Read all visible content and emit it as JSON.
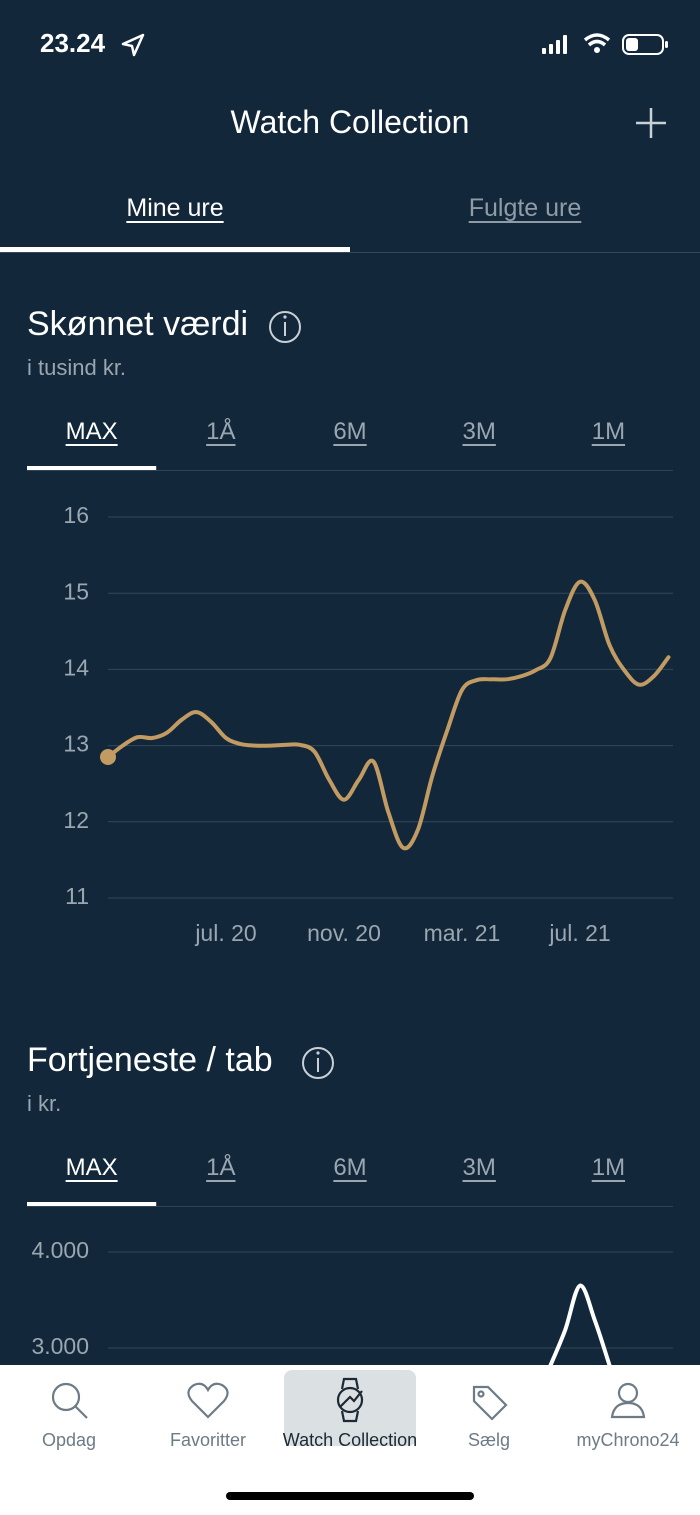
{
  "status_bar": {
    "time": "23.24"
  },
  "header": {
    "title": "Watch Collection",
    "tabs": [
      "Mine ure",
      "Fulgte ure"
    ],
    "active_tab": 0
  },
  "chart_data": [
    {
      "type": "line",
      "title": "Skønnet værdi",
      "subtitle": "i tusind kr.",
      "range_buttons": [
        "MAX",
        "1Å",
        "6M",
        "3M",
        "1M"
      ],
      "active_range": 0,
      "categories": [
        null,
        null,
        null,
        null,
        null,
        null,
        null,
        null,
        "jul. 20",
        null,
        null,
        null,
        null,
        null,
        null,
        null,
        "nov. 20",
        null,
        null,
        null,
        null,
        null,
        null,
        null,
        "mar. 21",
        null,
        null,
        null,
        null,
        null,
        null,
        null,
        "jul. 21",
        null,
        null,
        null,
        null,
        null,
        null
      ],
      "values": [
        12.85,
        13.0,
        13.11,
        13.1,
        13.17,
        13.34,
        13.44,
        13.31,
        13.1,
        13.02,
        13.0,
        13.0,
        13.01,
        13.01,
        12.92,
        12.55,
        12.29,
        12.55,
        12.79,
        12.13,
        11.66,
        11.89,
        12.61,
        13.2,
        13.73,
        13.86,
        13.87,
        13.87,
        13.91,
        13.99,
        14.15,
        14.78,
        15.15,
        14.91,
        14.32,
        13.99,
        13.8,
        13.91,
        14.16
      ],
      "color": "#c29b63",
      "ylim": [
        11,
        16
      ],
      "yticks": [
        11,
        12,
        13,
        14,
        15,
        16
      ],
      "grid": true
    },
    {
      "type": "line",
      "title": "Fortjeneste / tab",
      "subtitle": "i kr.",
      "range_buttons": [
        "MAX",
        "1Å",
        "6M",
        "3M",
        "1M"
      ],
      "active_range": 0,
      "values": [
        null,
        null,
        null,
        null,
        null,
        null,
        null,
        null,
        null,
        null,
        null,
        null,
        null,
        null,
        null,
        null,
        null,
        null,
        null,
        null,
        null,
        null,
        null,
        null,
        null,
        null,
        null,
        null,
        null,
        null,
        2820,
        3190,
        3650,
        3290,
        2820,
        null,
        null,
        null,
        null
      ],
      "color": "#ffffff",
      "ylim": [
        0,
        4000
      ],
      "yticks": [
        {
          "value": 3000,
          "label": "3.000"
        },
        {
          "value": 4000,
          "label": "4.000"
        }
      ],
      "grid": true
    }
  ],
  "nav": {
    "items": [
      "Opdag",
      "Favoritter",
      "Watch Collection",
      "Sælg",
      "myChrono24"
    ],
    "active": 2
  }
}
